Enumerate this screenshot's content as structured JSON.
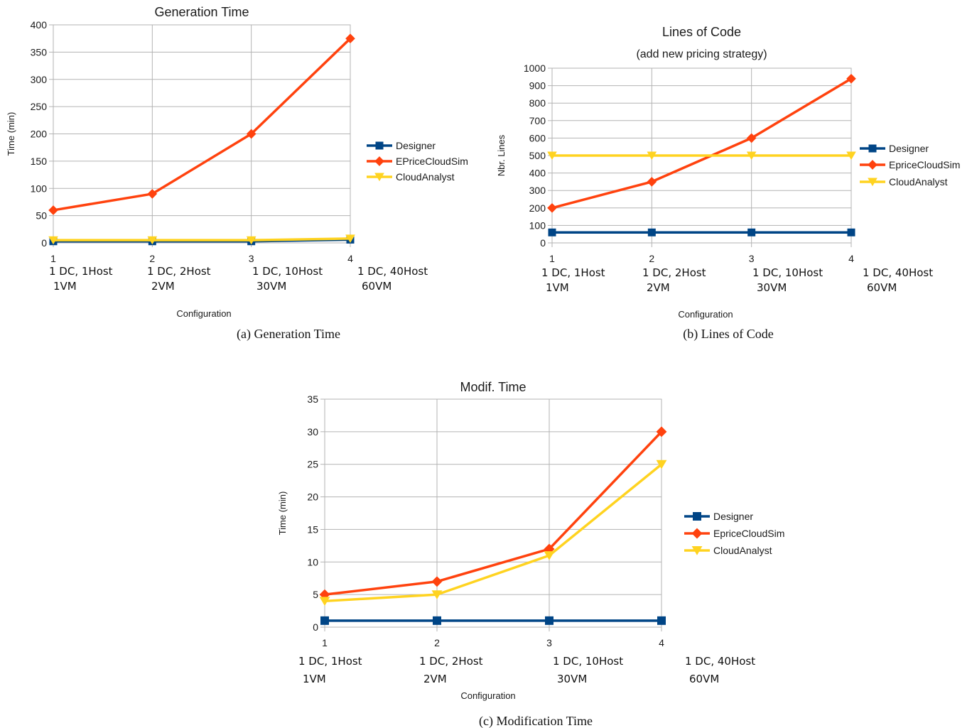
{
  "chart_data": [
    {
      "type": "line",
      "title": "Generation Time",
      "subtitle": "",
      "caption": "(a) Generation Time",
      "xlabel": "Configuration",
      "ylabel": "Time (min)",
      "x_ticks": [
        "1",
        "2",
        "3",
        "4"
      ],
      "categories": [
        [
          "1 DC, 1Host",
          "1VM"
        ],
        [
          "1 DC, 2Host",
          "2VM"
        ],
        [
          "1 DC, 10Host",
          "30VM"
        ],
        [
          "1 DC, 40Host",
          "60VM"
        ]
      ],
      "ylim": [
        0,
        400
      ],
      "yticks": [
        0,
        50,
        100,
        150,
        200,
        250,
        300,
        350,
        400
      ],
      "grid": true,
      "legend_position": "right",
      "series": [
        {
          "name": "Designer",
          "values": [
            3,
            3,
            3,
            6
          ],
          "color": "#004586",
          "marker": "square"
        },
        {
          "name": "EPriceCloudSim",
          "values": [
            60,
            90,
            200,
            375
          ],
          "color": "#ff420e",
          "marker": "diamond"
        },
        {
          "name": "CloudAnalyst",
          "values": [
            5,
            5,
            5,
            8
          ],
          "color": "#ffd320",
          "marker": "triangle-down"
        }
      ]
    },
    {
      "type": "line",
      "title": "Lines of Code",
      "subtitle": "(add new pricing strategy)",
      "caption": "(b) Lines of Code",
      "xlabel": "Configuration",
      "ylabel": "Nbr. Lines",
      "x_ticks": [
        "1",
        "2",
        "3",
        "4"
      ],
      "categories": [
        [
          "1 DC, 1Host",
          "1VM"
        ],
        [
          "1 DC, 2Host",
          "2VM"
        ],
        [
          "1 DC, 10Host",
          "30VM"
        ],
        [
          "1 DC, 40Host",
          "60VM"
        ]
      ],
      "ylim": [
        0,
        1000
      ],
      "yticks": [
        0,
        100,
        200,
        300,
        400,
        500,
        600,
        700,
        800,
        900,
        1000
      ],
      "grid": true,
      "legend_position": "right",
      "series": [
        {
          "name": "Designer",
          "values": [
            60,
            60,
            60,
            60
          ],
          "color": "#004586",
          "marker": "square"
        },
        {
          "name": "EpriceCloudSim",
          "values": [
            200,
            350,
            600,
            940
          ],
          "color": "#ff420e",
          "marker": "diamond"
        },
        {
          "name": "CloudAnalyst",
          "values": [
            500,
            500,
            500,
            500
          ],
          "color": "#ffd320",
          "marker": "triangle-down"
        }
      ]
    },
    {
      "type": "line",
      "title": "Modif. Time",
      "subtitle": "",
      "caption": "(c) Modification Time",
      "xlabel": "Configuration",
      "ylabel": "Time (min)",
      "x_ticks": [
        "1",
        "2",
        "3",
        "4"
      ],
      "categories": [
        [
          "1 DC, 1Host",
          "1VM"
        ],
        [
          "1 DC, 2Host",
          "2VM"
        ],
        [
          "1 DC, 10Host",
          "30VM"
        ],
        [
          "1 DC, 40Host",
          "60VM"
        ]
      ],
      "ylim": [
        0,
        35
      ],
      "yticks": [
        0,
        5,
        10,
        15,
        20,
        25,
        30,
        35
      ],
      "grid": true,
      "legend_position": "right",
      "series": [
        {
          "name": "Designer",
          "values": [
            1,
            1,
            1,
            1
          ],
          "color": "#004586",
          "marker": "square"
        },
        {
          "name": "EpriceCloudSim",
          "values": [
            5,
            7,
            12,
            30
          ],
          "color": "#ff420e",
          "marker": "diamond"
        },
        {
          "name": "CloudAnalyst",
          "values": [
            4,
            5,
            11,
            25
          ],
          "color": "#ffd320",
          "marker": "triangle-down"
        }
      ]
    }
  ]
}
